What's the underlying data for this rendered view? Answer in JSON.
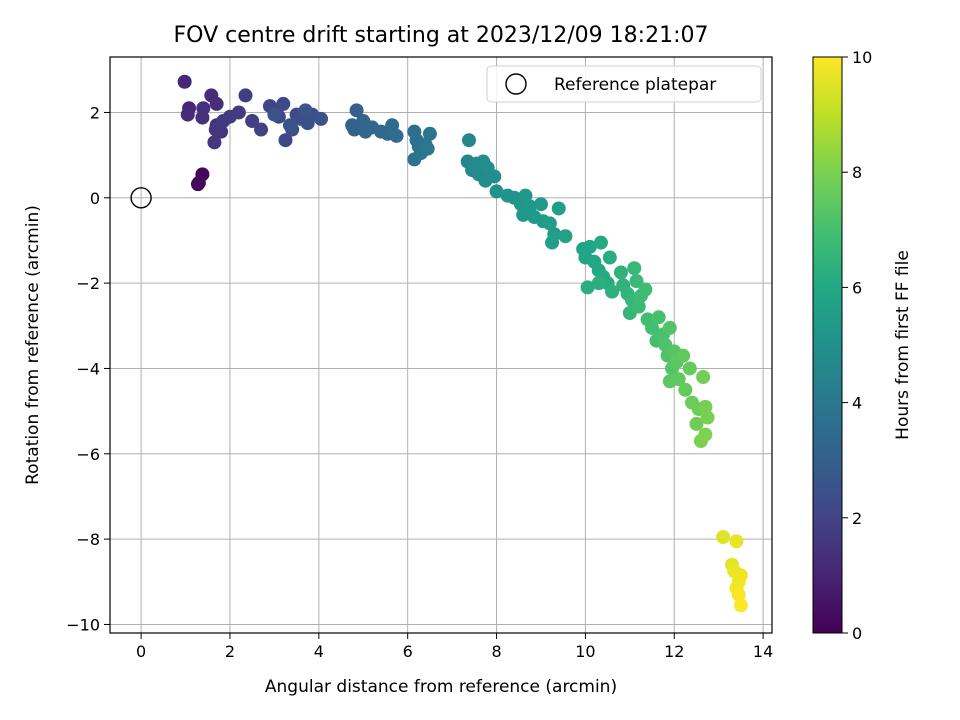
{
  "chart_data": {
    "type": "scatter",
    "title": "FOV centre drift starting at 2023/12/09 18:21:07",
    "xlabel": "Angular distance from reference (arcmin)",
    "ylabel": "Rotation from reference (arcmin)",
    "xlim": [
      -0.7,
      14.2
    ],
    "ylim": [
      -10.2,
      3.3
    ],
    "xticks": [
      0,
      2,
      4,
      6,
      8,
      10,
      12,
      14
    ],
    "yticks": [
      -10,
      -8,
      -6,
      -4,
      -2,
      0,
      2
    ],
    "grid": true,
    "legend": {
      "placement": "top-right",
      "entries": [
        "Reference platepar"
      ]
    },
    "reference_point": {
      "name": "Reference platepar",
      "x": 0,
      "y": 0
    },
    "colorbar": {
      "label": "Hours from first FF file",
      "range": [
        0,
        10
      ],
      "ticks": [
        0,
        2,
        4,
        6,
        8,
        10
      ],
      "colormap": "viridis"
    },
    "points": [
      [
        1.28,
        0.32,
        0.05
      ],
      [
        1.38,
        0.55,
        0.15
      ],
      [
        1.3,
        0.35,
        0.25
      ],
      [
        0.98,
        2.72,
        1.1
      ],
      [
        1.08,
        2.1,
        1.15
      ],
      [
        1.05,
        1.95,
        1.2
      ],
      [
        1.58,
        2.4,
        1.25
      ],
      [
        1.7,
        2.2,
        1.3
      ],
      [
        1.4,
        2.1,
        1.35
      ],
      [
        1.38,
        1.88,
        1.4
      ],
      [
        1.7,
        1.7,
        1.45
      ],
      [
        1.8,
        1.55,
        1.5
      ],
      [
        1.65,
        1.3,
        1.55
      ],
      [
        1.68,
        1.6,
        1.6
      ],
      [
        1.85,
        1.8,
        1.65
      ],
      [
        2.0,
        1.9,
        1.7
      ],
      [
        2.2,
        2.0,
        1.75
      ],
      [
        2.35,
        2.4,
        1.8
      ],
      [
        2.5,
        1.8,
        1.85
      ],
      [
        2.7,
        1.6,
        1.9
      ],
      [
        2.9,
        2.15,
        2.0
      ],
      [
        3.05,
        2.05,
        2.05
      ],
      [
        3.1,
        1.9,
        2.1
      ],
      [
        3.2,
        2.2,
        2.15
      ],
      [
        3.25,
        1.35,
        2.2
      ],
      [
        3.4,
        1.6,
        2.25
      ],
      [
        3.5,
        1.95,
        2.3
      ],
      [
        3.6,
        1.85,
        2.35
      ],
      [
        3.75,
        1.75,
        2.4
      ],
      [
        3.85,
        1.95,
        2.45
      ],
      [
        4.05,
        1.85,
        2.5
      ],
      [
        3.0,
        1.95,
        2.55
      ],
      [
        3.35,
        1.7,
        2.6
      ],
      [
        3.7,
        2.05,
        2.65
      ],
      [
        4.85,
        2.05,
        3.0
      ],
      [
        4.75,
        1.7,
        3.1
      ],
      [
        4.8,
        1.6,
        3.15
      ],
      [
        5.0,
        1.8,
        3.2
      ],
      [
        5.05,
        1.55,
        3.25
      ],
      [
        5.2,
        1.65,
        3.3
      ],
      [
        5.4,
        1.55,
        3.35
      ],
      [
        5.55,
        1.5,
        3.4
      ],
      [
        5.65,
        1.7,
        3.45
      ],
      [
        5.75,
        1.45,
        3.5
      ],
      [
        6.15,
        1.55,
        3.6
      ],
      [
        6.2,
        1.35,
        3.65
      ],
      [
        6.25,
        1.2,
        3.7
      ],
      [
        6.15,
        0.9,
        3.75
      ],
      [
        6.3,
        1.05,
        3.8
      ],
      [
        6.4,
        1.25,
        3.85
      ],
      [
        6.5,
        1.5,
        3.9
      ],
      [
        6.45,
        1.15,
        3.95
      ],
      [
        7.38,
        1.35,
        4.5
      ],
      [
        7.35,
        0.85,
        4.6
      ],
      [
        7.45,
        0.65,
        4.65
      ],
      [
        7.55,
        0.8,
        4.7
      ],
      [
        7.6,
        0.55,
        4.75
      ],
      [
        7.7,
        0.85,
        4.8
      ],
      [
        7.75,
        0.4,
        4.85
      ],
      [
        7.8,
        0.7,
        4.9
      ],
      [
        7.95,
        0.5,
        4.95
      ],
      [
        8.0,
        0.15,
        5.0
      ],
      [
        8.25,
        0.05,
        5.05
      ],
      [
        8.4,
        0.0,
        5.1
      ],
      [
        8.55,
        -0.15,
        5.15
      ],
      [
        8.65,
        0.05,
        5.2
      ],
      [
        8.6,
        -0.4,
        5.25
      ],
      [
        8.75,
        -0.2,
        5.3
      ],
      [
        8.85,
        -0.45,
        5.35
      ],
      [
        9.0,
        -0.15,
        5.4
      ],
      [
        9.05,
        -0.55,
        5.45
      ],
      [
        9.2,
        -0.6,
        5.5
      ],
      [
        9.3,
        -0.85,
        5.55
      ],
      [
        9.25,
        -1.05,
        5.6
      ],
      [
        9.4,
        -0.25,
        5.65
      ],
      [
        9.55,
        -0.9,
        5.7
      ],
      [
        9.95,
        -1.2,
        5.8
      ],
      [
        10.0,
        -1.4,
        5.85
      ],
      [
        10.1,
        -1.15,
        5.9
      ],
      [
        10.2,
        -1.5,
        5.95
      ],
      [
        10.3,
        -1.7,
        6.0
      ],
      [
        10.35,
        -1.05,
        6.05
      ],
      [
        10.4,
        -1.85,
        6.1
      ],
      [
        10.5,
        -2.0,
        6.15
      ],
      [
        10.55,
        -1.4,
        6.2
      ],
      [
        10.05,
        -2.1,
        6.25
      ],
      [
        10.3,
        -2.0,
        6.3
      ],
      [
        10.6,
        -2.2,
        6.35
      ],
      [
        10.8,
        -1.75,
        6.4
      ],
      [
        10.85,
        -2.05,
        6.45
      ],
      [
        10.95,
        -2.25,
        6.5
      ],
      [
        11.0,
        -2.7,
        6.55
      ],
      [
        11.05,
        -2.4,
        6.6
      ],
      [
        11.1,
        -1.65,
        6.65
      ],
      [
        11.15,
        -1.95,
        6.7
      ],
      [
        11.2,
        -2.55,
        6.75
      ],
      [
        11.25,
        -2.3,
        6.8
      ],
      [
        11.35,
        -2.15,
        6.85
      ],
      [
        11.4,
        -2.85,
        6.9
      ],
      [
        11.5,
        -3.05,
        6.95
      ],
      [
        11.6,
        -3.35,
        7.0
      ],
      [
        11.65,
        -2.8,
        7.05
      ],
      [
        11.75,
        -3.2,
        7.1
      ],
      [
        11.8,
        -3.45,
        7.15
      ],
      [
        11.85,
        -3.7,
        7.2
      ],
      [
        11.9,
        -3.05,
        7.25
      ],
      [
        11.95,
        -4.0,
        7.3
      ],
      [
        12.0,
        -3.6,
        7.35
      ],
      [
        12.05,
        -3.85,
        7.4
      ],
      [
        11.9,
        -4.3,
        7.45
      ],
      [
        12.1,
        -4.25,
        7.5
      ],
      [
        12.2,
        -3.7,
        7.55
      ],
      [
        12.25,
        -4.5,
        7.6
      ],
      [
        12.35,
        -4.0,
        7.65
      ],
      [
        12.4,
        -4.8,
        7.7
      ],
      [
        12.55,
        -4.95,
        7.75
      ],
      [
        12.5,
        -5.3,
        7.8
      ],
      [
        12.65,
        -4.2,
        7.85
      ],
      [
        12.7,
        -4.9,
        7.9
      ],
      [
        12.75,
        -5.15,
        7.95
      ],
      [
        12.6,
        -5.7,
        8.0
      ],
      [
        12.7,
        -5.55,
        8.05
      ],
      [
        13.1,
        -7.95,
        9.55
      ],
      [
        13.3,
        -8.6,
        9.6
      ],
      [
        13.4,
        -8.05,
        9.65
      ],
      [
        13.35,
        -8.75,
        9.7
      ],
      [
        13.45,
        -9.0,
        9.75
      ],
      [
        13.5,
        -8.85,
        9.8
      ],
      [
        13.4,
        -9.15,
        9.85
      ],
      [
        13.45,
        -9.3,
        9.9
      ],
      [
        13.5,
        -9.55,
        9.95
      ]
    ]
  }
}
